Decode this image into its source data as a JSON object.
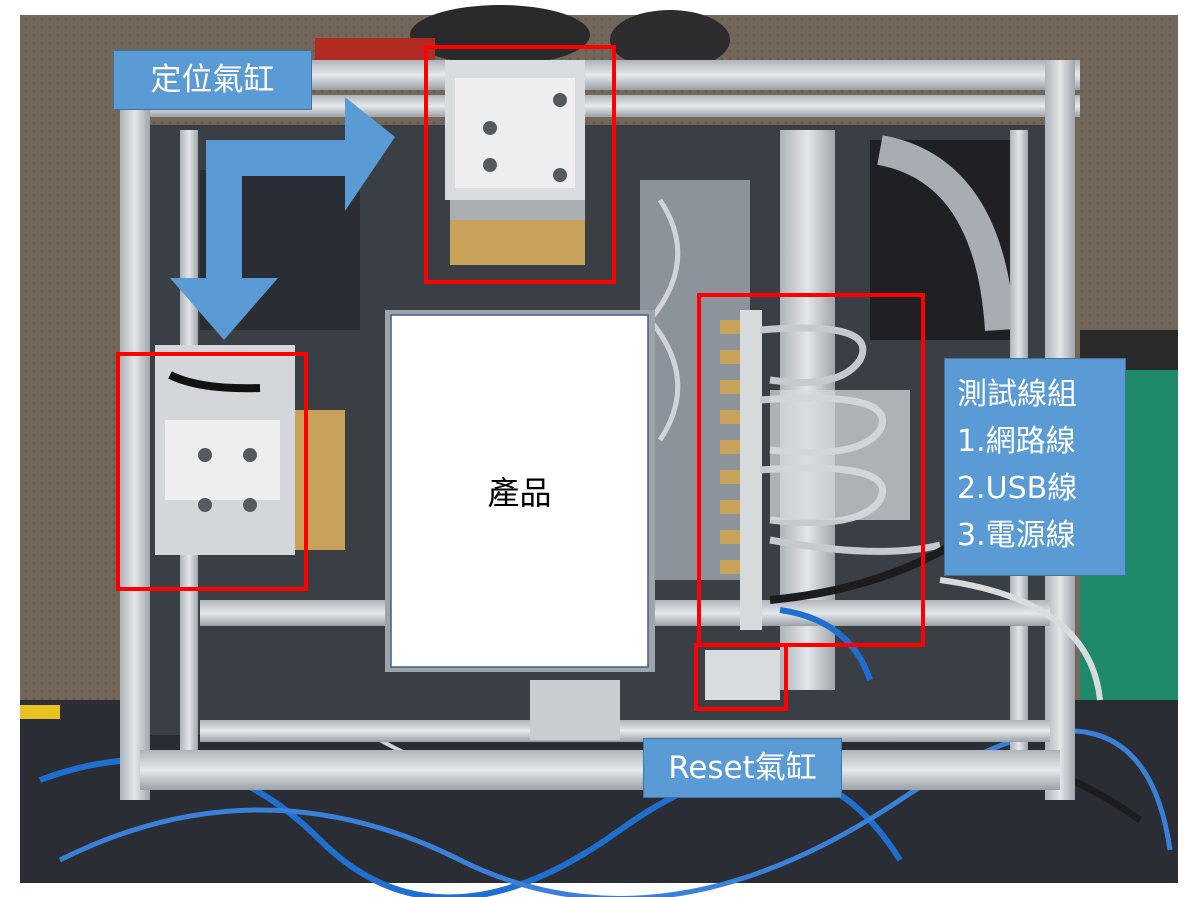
{
  "labels": {
    "positioning_cylinder": "定位氣缸",
    "reset_cylinder": "Reset氣缸",
    "product": "產品",
    "test_wire_group": {
      "title": "測試線組",
      "items": [
        "1.網路線",
        "2.USB線",
        "3.電源線"
      ]
    }
  },
  "colors": {
    "label_fill": "#5b9bd5",
    "highlight_box": "#ff0000",
    "arrow": "#5b9bd5",
    "frame": "#c9ced3",
    "background_floor": "#6e6256"
  }
}
